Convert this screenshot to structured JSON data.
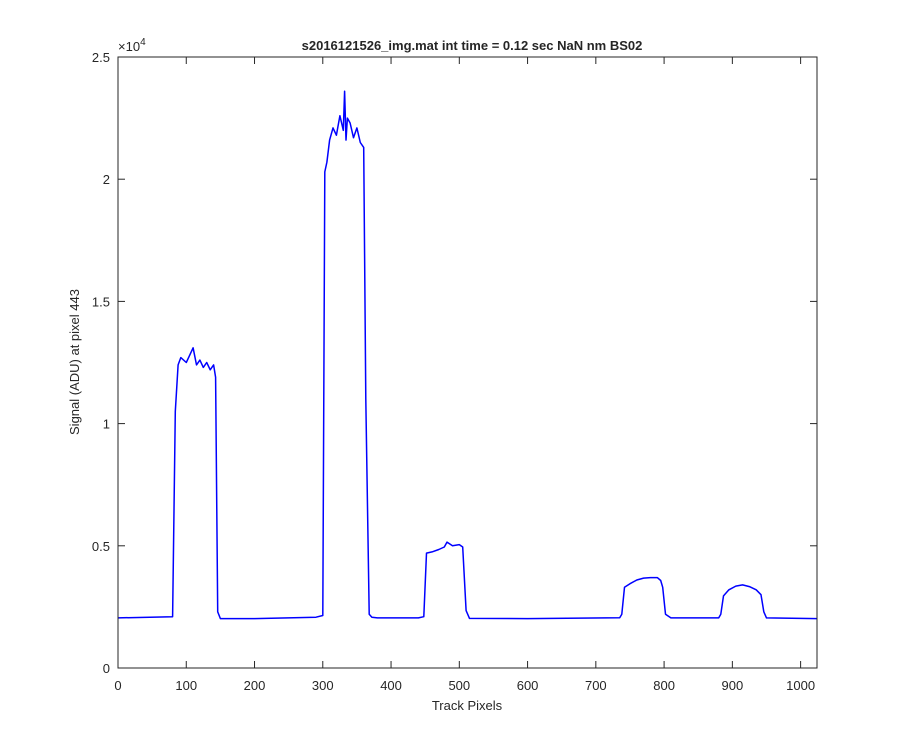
{
  "chart_data": {
    "type": "line",
    "title": "s2016121526_img.mat int time = 0.12 sec  NaN nm BS02",
    "xlabel": "Track Pixels",
    "ylabel": "Signal (ADU) at pixel 443",
    "xlim": [
      0,
      1024
    ],
    "ylim": [
      0,
      25000
    ],
    "exponent_label": "×10",
    "exponent_power": "4",
    "x_ticks": [
      0,
      100,
      200,
      300,
      400,
      500,
      600,
      700,
      800,
      900,
      1000
    ],
    "x_tick_labels": [
      "0",
      "100",
      "200",
      "300",
      "400",
      "500",
      "600",
      "700",
      "800",
      "900",
      "1000"
    ],
    "y_ticks": [
      0,
      5000,
      10000,
      15000,
      20000,
      25000
    ],
    "y_tick_labels": [
      "0",
      "0.5",
      "1",
      "1.5",
      "2",
      "2.5"
    ],
    "grid": false,
    "line_color": "#0000ff",
    "series": [
      {
        "x": [
          0,
          80,
          84,
          88,
          92,
          100,
          105,
          110,
          115,
          120,
          125,
          130,
          135,
          140,
          143,
          146,
          150,
          200,
          290,
          300,
          303,
          306,
          310,
          315,
          320,
          325,
          330,
          332,
          334,
          336,
          340,
          345,
          350,
          355,
          360,
          363,
          368,
          372,
          380,
          440,
          448,
          452,
          460,
          470,
          478,
          482,
          490,
          500,
          505,
          510,
          515,
          600,
          735,
          738,
          742,
          750,
          760,
          770,
          780,
          790,
          795,
          798,
          802,
          810,
          880,
          883,
          887,
          895,
          905,
          915,
          925,
          935,
          942,
          946,
          950,
          1024
        ],
        "values": [
          2050,
          2100,
          10500,
          12400,
          12700,
          12500,
          12800,
          13100,
          12400,
          12600,
          12300,
          12500,
          12200,
          12400,
          11900,
          2300,
          2020,
          2020,
          2080,
          2150,
          20300,
          20700,
          21600,
          22100,
          21800,
          22600,
          22000,
          23600,
          21600,
          22500,
          22300,
          21700,
          22100,
          21500,
          21300,
          11000,
          2200,
          2080,
          2050,
          2050,
          2100,
          4700,
          4750,
          4850,
          4950,
          5150,
          5000,
          5050,
          4950,
          2350,
          2030,
          2020,
          2060,
          2200,
          3300,
          3450,
          3600,
          3680,
          3700,
          3700,
          3580,
          3300,
          2200,
          2050,
          2050,
          2200,
          2950,
          3200,
          3350,
          3400,
          3330,
          3200,
          3000,
          2300,
          2050,
          2020
        ]
      }
    ]
  }
}
